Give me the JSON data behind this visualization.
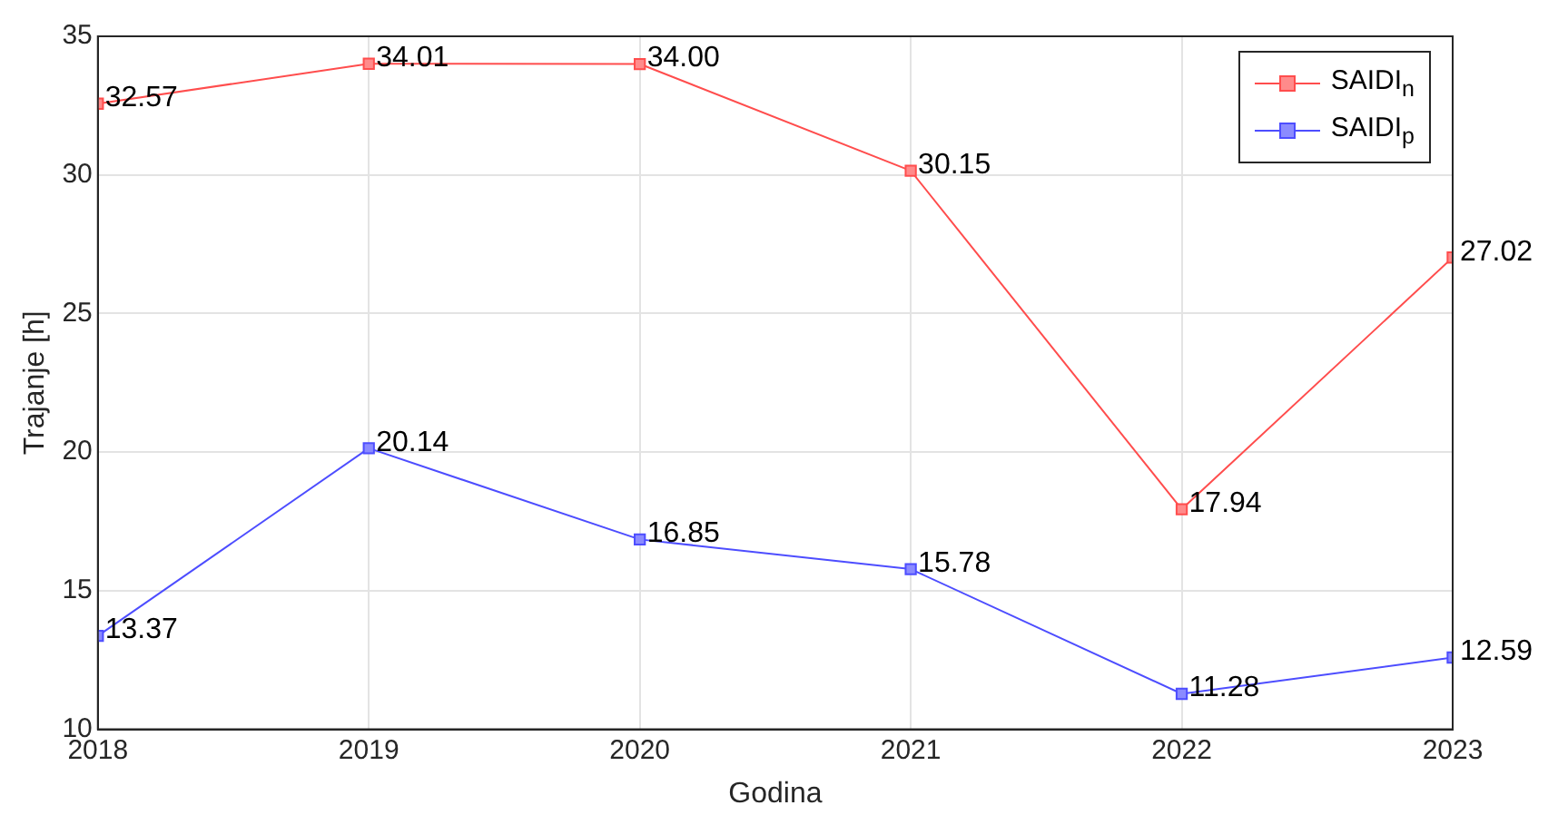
{
  "chart_data": {
    "type": "line",
    "xlabel": "Godina",
    "ylabel": "Trajanje [h]",
    "x": [
      2018,
      2019,
      2020,
      2021,
      2022,
      2023
    ],
    "series": [
      {
        "name": "SAIDI$_{n}$",
        "color": "#ff4d4d",
        "values": [
          32.57,
          34.01,
          34.0,
          30.15,
          17.94,
          27.02
        ],
        "value_labels": [
          "32.57",
          "34.01",
          "34.00",
          "30.15",
          "17.94",
          "27.02"
        ]
      },
      {
        "name": "SAIDI$_{p}$",
        "color": "#4d4dff",
        "values": [
          13.37,
          20.14,
          16.85,
          15.78,
          11.28,
          12.59
        ],
        "value_labels": [
          "13.37",
          "20.14",
          "16.85",
          "15.78",
          "11.28",
          "12.59"
        ]
      }
    ],
    "xlim": [
      2018,
      2023
    ],
    "xticks": [
      2018,
      2019,
      2020,
      2021,
      2022,
      2023
    ],
    "ylim": [
      10,
      35
    ],
    "yticks": [
      10,
      15,
      20,
      25,
      30,
      35
    ],
    "grid": true,
    "legend": "top right",
    "marker": "square",
    "line_style": "solid"
  }
}
